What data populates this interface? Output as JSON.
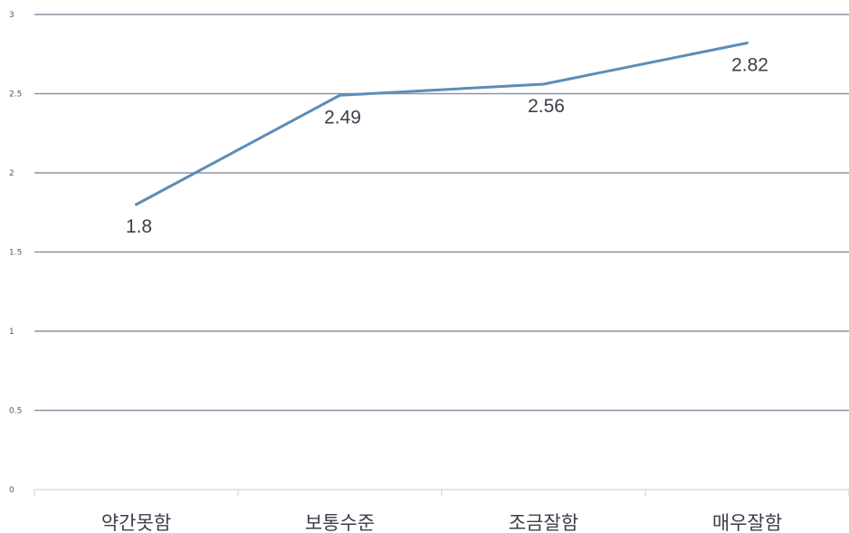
{
  "chart_data": {
    "type": "line",
    "categories": [
      "약간못함",
      "보통수준",
      "조금잘함",
      "매우잘함"
    ],
    "series": [
      {
        "values": [
          1.8,
          2.49,
          2.56,
          2.82
        ],
        "labels": [
          "1.8",
          "2.49",
          "2.56",
          "2.82"
        ]
      }
    ],
    "ylim": [
      0,
      3
    ],
    "yticks": [
      0,
      0.5,
      1,
      1.5,
      2,
      2.5,
      3
    ],
    "ytick_labels": [
      "0",
      "0.5",
      "1",
      "1.5",
      "2",
      "2.5",
      "3"
    ],
    "grid": true,
    "legend": "none",
    "colors": {
      "line": "#5b8db8",
      "grid": "#8a93a6"
    }
  }
}
